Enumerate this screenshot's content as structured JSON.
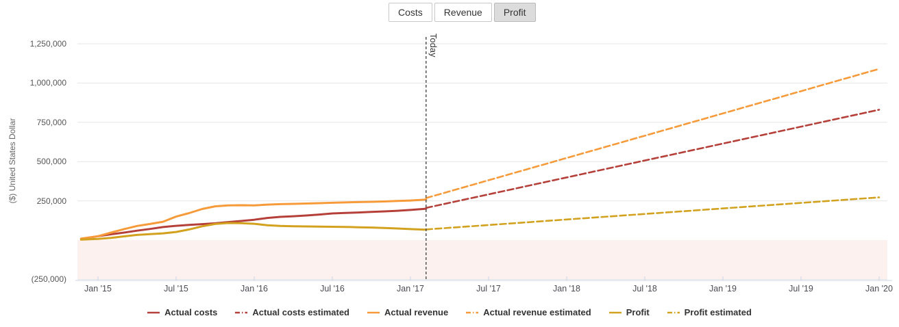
{
  "toolbar": {
    "buttons": [
      {
        "label": "Costs",
        "selected": false
      },
      {
        "label": "Revenue",
        "selected": false
      },
      {
        "label": "Profit",
        "selected": true
      }
    ]
  },
  "chart_data": {
    "type": "line",
    "title": "",
    "ylabel": "($) United States Dollar",
    "xlabel": "",
    "today_label": "Today",
    "today_month": 25.2,
    "ylim": [
      -260000,
      1330000
    ],
    "grid": true,
    "legend_position": "bottom",
    "colors": {
      "costs": "#b5403a",
      "revenue": "#f69a3a",
      "profit": "#d2a11e",
      "grid": "#e6e6e6",
      "axis_line": "#ccd6eb",
      "today_line": "#4a4a4a",
      "negative_band": "#fcf1ee",
      "selected_button_bg": "#dcdcdc"
    },
    "yticks": [
      {
        "value": 1250000,
        "label": "1,250,000"
      },
      {
        "value": 1000000,
        "label": "1,000,000"
      },
      {
        "value": 750000,
        "label": "750,000"
      },
      {
        "value": 500000,
        "label": "500,000"
      },
      {
        "value": 250000,
        "label": "250,000"
      },
      {
        "value": -250000,
        "label": "(250,000)"
      }
    ],
    "xticks": [
      {
        "month": 0,
        "label": "Jan '15"
      },
      {
        "month": 6,
        "label": "Jul '15"
      },
      {
        "month": 12,
        "label": "Jan '16"
      },
      {
        "month": 18,
        "label": "Jul '16"
      },
      {
        "month": 24,
        "label": "Jan '17"
      },
      {
        "month": 30,
        "label": "Jul '17"
      },
      {
        "month": 36,
        "label": "Jan '18"
      },
      {
        "month": 42,
        "label": "Jul '18"
      },
      {
        "month": 48,
        "label": "Jan '19"
      },
      {
        "month": 54,
        "label": "Jul '19"
      },
      {
        "month": 60,
        "label": "Jan '20"
      }
    ],
    "negative_band": {
      "from": 0,
      "to": -250000
    },
    "series": [
      {
        "name": "Actual costs",
        "color": "#b5403a",
        "dashed": false,
        "points": [
          [
            -1.3,
            8000
          ],
          [
            0,
            25000
          ],
          [
            1,
            37000
          ],
          [
            2,
            48000
          ],
          [
            3,
            60000
          ],
          [
            4,
            71000
          ],
          [
            5,
            83000
          ],
          [
            6,
            91000
          ],
          [
            7,
            97000
          ],
          [
            8,
            102000
          ],
          [
            9,
            107000
          ],
          [
            10,
            115000
          ],
          [
            11,
            122000
          ],
          [
            12,
            130000
          ],
          [
            13,
            141000
          ],
          [
            14,
            148000
          ],
          [
            15,
            152000
          ],
          [
            16,
            157000
          ],
          [
            17,
            163000
          ],
          [
            18,
            170000
          ],
          [
            19,
            173000
          ],
          [
            20,
            176000
          ],
          [
            21,
            180000
          ],
          [
            22,
            183000
          ],
          [
            23,
            187000
          ],
          [
            24,
            192000
          ],
          [
            25.2,
            200000
          ]
        ]
      },
      {
        "name": "Actual costs estimated",
        "color": "#b5403a",
        "dashed": true,
        "points": [
          [
            25.2,
            205000
          ],
          [
            60,
            830000
          ]
        ]
      },
      {
        "name": "Actual revenue",
        "color": "#f69a3a",
        "dashed": false,
        "points": [
          [
            -1.3,
            10000
          ],
          [
            0,
            25000
          ],
          [
            1,
            48000
          ],
          [
            2,
            70000
          ],
          [
            3,
            90000
          ],
          [
            4,
            103000
          ],
          [
            5,
            117000
          ],
          [
            6,
            150000
          ],
          [
            7,
            172000
          ],
          [
            8,
            198000
          ],
          [
            9,
            215000
          ],
          [
            10,
            221000
          ],
          [
            11,
            222000
          ],
          [
            12,
            221000
          ],
          [
            13,
            226000
          ],
          [
            14,
            229000
          ],
          [
            15,
            231000
          ],
          [
            16,
            233000
          ],
          [
            17,
            235000
          ],
          [
            18,
            238000
          ],
          [
            19,
            240000
          ],
          [
            20,
            242000
          ],
          [
            21,
            244000
          ],
          [
            22,
            246000
          ],
          [
            23,
            249000
          ],
          [
            24,
            252000
          ],
          [
            25.2,
            258000
          ]
        ]
      },
      {
        "name": "Actual revenue estimated",
        "color": "#f69a3a",
        "dashed": true,
        "points": [
          [
            25.2,
            268000
          ],
          [
            60,
            1090000
          ]
        ]
      },
      {
        "name": "Profit",
        "color": "#d2a11e",
        "dashed": false,
        "points": [
          [
            -1.3,
            3000
          ],
          [
            0,
            8000
          ],
          [
            1,
            14000
          ],
          [
            2,
            24000
          ],
          [
            3,
            33000
          ],
          [
            4,
            38000
          ],
          [
            5,
            43000
          ],
          [
            6,
            52000
          ],
          [
            7,
            68000
          ],
          [
            8,
            88000
          ],
          [
            9,
            103000
          ],
          [
            10,
            109000
          ],
          [
            11,
            108000
          ],
          [
            12,
            104000
          ],
          [
            13,
            95000
          ],
          [
            14,
            90000
          ],
          [
            15,
            88000
          ],
          [
            16,
            87000
          ],
          [
            17,
            86000
          ],
          [
            18,
            85000
          ],
          [
            19,
            84000
          ],
          [
            20,
            82000
          ],
          [
            21,
            80000
          ],
          [
            22,
            77000
          ],
          [
            23,
            74000
          ],
          [
            24,
            70000
          ],
          [
            25.2,
            66000
          ]
        ]
      },
      {
        "name": "Profit estimated",
        "color": "#d2a11e",
        "dashed": true,
        "points": [
          [
            25.2,
            68000
          ],
          [
            60,
            272000
          ]
        ]
      }
    ]
  }
}
